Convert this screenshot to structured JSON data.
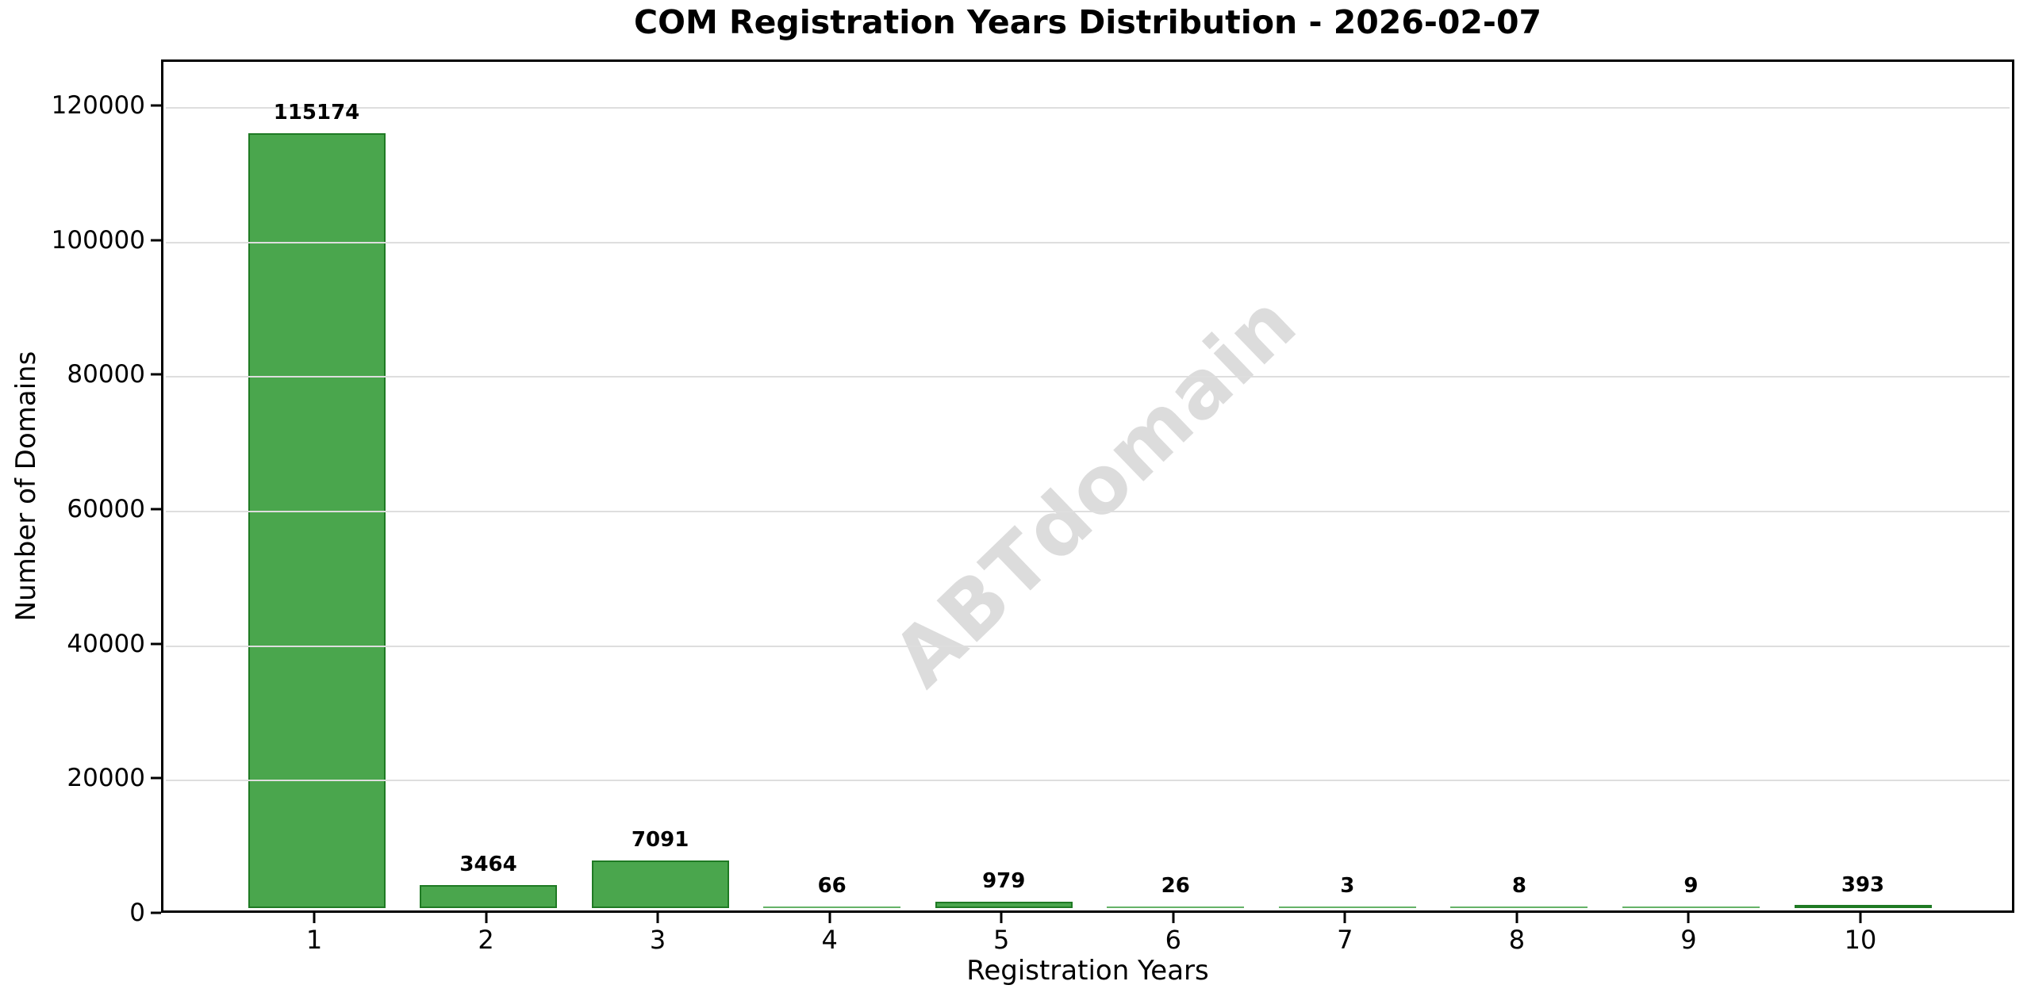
{
  "title": "COM Registration Years Distribution - 2026-02-07",
  "watermark": "ABTdomain",
  "colors": {
    "bar_fill": "#4aa64d",
    "bar_edge": "#1f7a24",
    "gridline": "#dedede",
    "watermark": "#dcdcdc",
    "axis": "#000000",
    "background": "#ffffff"
  },
  "chart_data": {
    "type": "bar",
    "title": "COM Registration Years Distribution - 2026-02-07",
    "xlabel": "Registration Years",
    "ylabel": "Number of Domains",
    "categories": [
      "1",
      "2",
      "3",
      "4",
      "5",
      "6",
      "7",
      "8",
      "9",
      "10"
    ],
    "values": [
      115174,
      3464,
      7091,
      66,
      979,
      26,
      3,
      8,
      9,
      393
    ],
    "bar_value_labels": [
      "115174",
      "3464",
      "7091",
      "66",
      "979",
      "26",
      "3",
      "8",
      "9",
      "393"
    ],
    "yticks": [
      0,
      20000,
      40000,
      60000,
      80000,
      100000,
      120000
    ],
    "ytick_labels": [
      "0",
      "20000",
      "40000",
      "60000",
      "80000",
      "100000",
      "120000"
    ],
    "ylim": [
      0,
      126800
    ],
    "grid": true,
    "legend": null,
    "watermark": "ABTdomain"
  }
}
